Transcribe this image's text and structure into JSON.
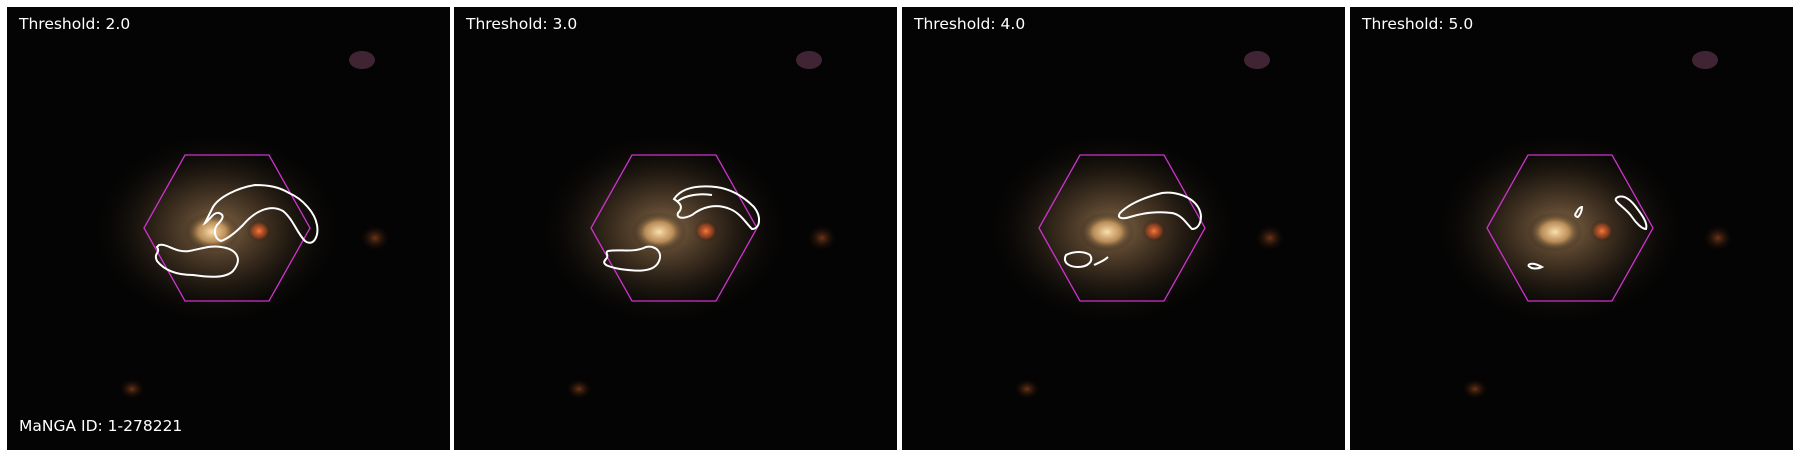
{
  "figure": {
    "id_label": "MaNGA ID: 1-278221",
    "panels": [
      {
        "label": "Threshold: 2.0"
      },
      {
        "label": "Threshold: 3.0"
      },
      {
        "label": "Threshold: 4.0"
      },
      {
        "label": "Threshold: 5.0"
      }
    ]
  },
  "colors": {
    "hexagon": "#cc33cc",
    "contour": "#ffffff",
    "background": "#040404",
    "galaxy_core": "#f2c488",
    "companion_core": "#ff6a2a"
  }
}
